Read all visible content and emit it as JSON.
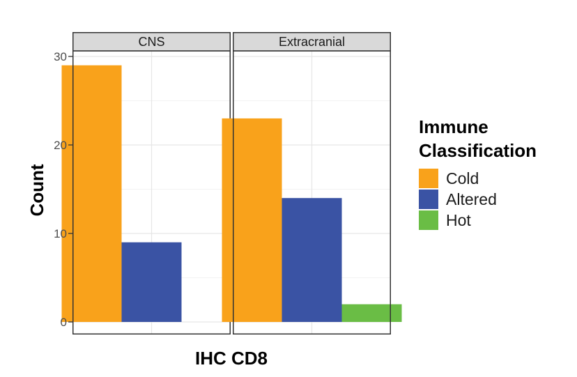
{
  "chart_data": {
    "type": "bar",
    "layout": "faceted",
    "xlabel": "IHC CD8",
    "ylabel": "Count",
    "ylim": [
      0,
      30
    ],
    "yticks": [
      0,
      10,
      20,
      30
    ],
    "grid": true,
    "legend": {
      "title_lines": [
        "Immune",
        "Classification"
      ],
      "placement": "right"
    },
    "series": [
      {
        "name": "Cold",
        "color": "#F9A21B"
      },
      {
        "name": "Altered",
        "color": "#3A53A4"
      },
      {
        "name": "Hot",
        "color": "#6ABD45"
      }
    ],
    "facets": [
      {
        "label": "CNS",
        "values": [
          29,
          9,
          0
        ]
      },
      {
        "label": "Extracranial",
        "values": [
          23,
          14,
          2
        ]
      }
    ]
  }
}
